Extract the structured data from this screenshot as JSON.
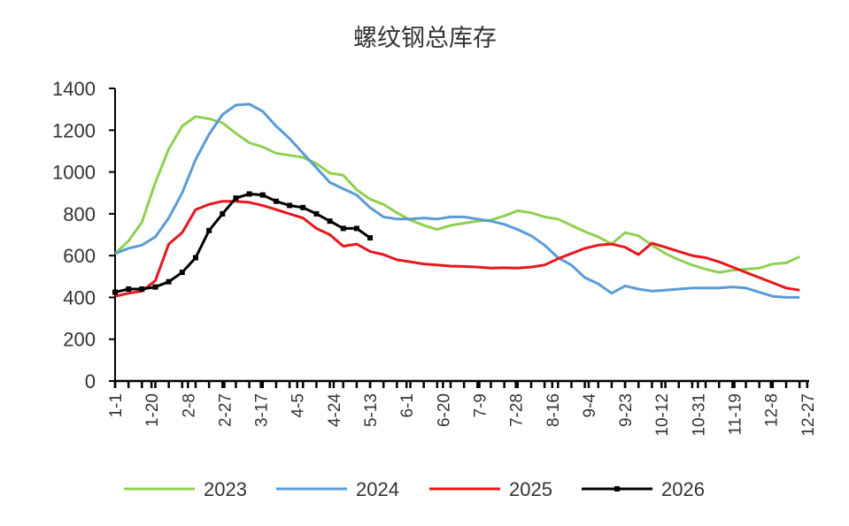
{
  "chart_data": {
    "type": "line",
    "title": "螺纹钢总库存",
    "x": [
      0,
      7,
      14,
      21,
      28,
      35,
      42,
      49,
      56,
      63,
      70,
      77,
      84,
      91,
      98,
      105,
      112,
      119,
      126,
      133,
      140,
      147,
      154,
      161,
      168,
      175,
      182,
      189,
      196,
      203,
      210,
      217,
      224,
      231,
      238,
      245,
      252,
      259,
      266,
      273,
      280,
      287,
      294,
      301,
      308,
      315,
      322,
      329,
      336,
      343,
      350,
      357
    ],
    "xlim": [
      0,
      362
    ],
    "xticks": [
      {
        "value": 0,
        "label": "1-1"
      },
      {
        "value": 19,
        "label": "1-20"
      },
      {
        "value": 38,
        "label": "2-8"
      },
      {
        "value": 57,
        "label": "2-27"
      },
      {
        "value": 76,
        "label": "3-17"
      },
      {
        "value": 95,
        "label": "4-5"
      },
      {
        "value": 114,
        "label": "4-24"
      },
      {
        "value": 133,
        "label": "5-13"
      },
      {
        "value": 152,
        "label": "6-1"
      },
      {
        "value": 171,
        "label": "6-20"
      },
      {
        "value": 190,
        "label": "7-9"
      },
      {
        "value": 209,
        "label": "7-28"
      },
      {
        "value": 228,
        "label": "8-16"
      },
      {
        "value": 247,
        "label": "9-4"
      },
      {
        "value": 266,
        "label": "9-23"
      },
      {
        "value": 285,
        "label": "10-12"
      },
      {
        "value": 304,
        "label": "10-31"
      },
      {
        "value": 323,
        "label": "11-19"
      },
      {
        "value": 342,
        "label": "12-8"
      },
      {
        "value": 361,
        "label": "12-27"
      }
    ],
    "ylim": [
      0,
      1400
    ],
    "yticks": [
      0,
      200,
      400,
      600,
      800,
      1000,
      1200,
      1400
    ],
    "legend": "bottom",
    "series": [
      {
        "name": "2023",
        "color": "#8fd14f",
        "values": [
          610,
          670,
          760,
          950,
          1110,
          1220,
          1265,
          1255,
          1235,
          1185,
          1140,
          1120,
          1090,
          1080,
          1070,
          1040,
          995,
          985,
          915,
          870,
          845,
          805,
          770,
          745,
          725,
          745,
          755,
          765,
          770,
          790,
          815,
          805,
          785,
          775,
          745,
          715,
          690,
          655,
          710,
          695,
          650,
          610,
          580,
          555,
          535,
          520,
          530,
          535,
          540,
          560,
          565,
          595
        ]
      },
      {
        "name": "2024",
        "color": "#5b9bd5",
        "values": [
          610,
          635,
          650,
          690,
          780,
          900,
          1060,
          1180,
          1275,
          1320,
          1325,
          1290,
          1220,
          1160,
          1090,
          1020,
          950,
          920,
          890,
          830,
          785,
          775,
          775,
          780,
          775,
          785,
          785,
          775,
          765,
          750,
          725,
          695,
          650,
          590,
          555,
          495,
          465,
          420,
          455,
          440,
          430,
          435,
          440,
          445,
          445,
          445,
          450,
          445,
          425,
          405,
          400,
          400
        ]
      },
      {
        "name": "2025",
        "color": "#e8161b",
        "values": [
          405,
          420,
          430,
          480,
          655,
          710,
          820,
          845,
          860,
          860,
          855,
          840,
          820,
          800,
          780,
          730,
          700,
          645,
          655,
          620,
          605,
          580,
          570,
          560,
          555,
          550,
          548,
          545,
          540,
          542,
          540,
          545,
          555,
          585,
          610,
          635,
          650,
          655,
          640,
          605,
          660,
          640,
          620,
          600,
          590,
          570,
          545,
          520,
          495,
          470,
          445,
          435
        ]
      },
      {
        "name": "2026",
        "color": "#000000",
        "marker": "square",
        "values": [
          425,
          440,
          440,
          450,
          475,
          520,
          590,
          720,
          800,
          875,
          895,
          890,
          860,
          840,
          830,
          800,
          765,
          730,
          730,
          685,
          null,
          null,
          null,
          null,
          null,
          null,
          null,
          null,
          null,
          null,
          null,
          null,
          null,
          null,
          null,
          null,
          null,
          null,
          null,
          null,
          null,
          null,
          null,
          null,
          null,
          null,
          null,
          null,
          null,
          null,
          null,
          null
        ]
      }
    ]
  }
}
